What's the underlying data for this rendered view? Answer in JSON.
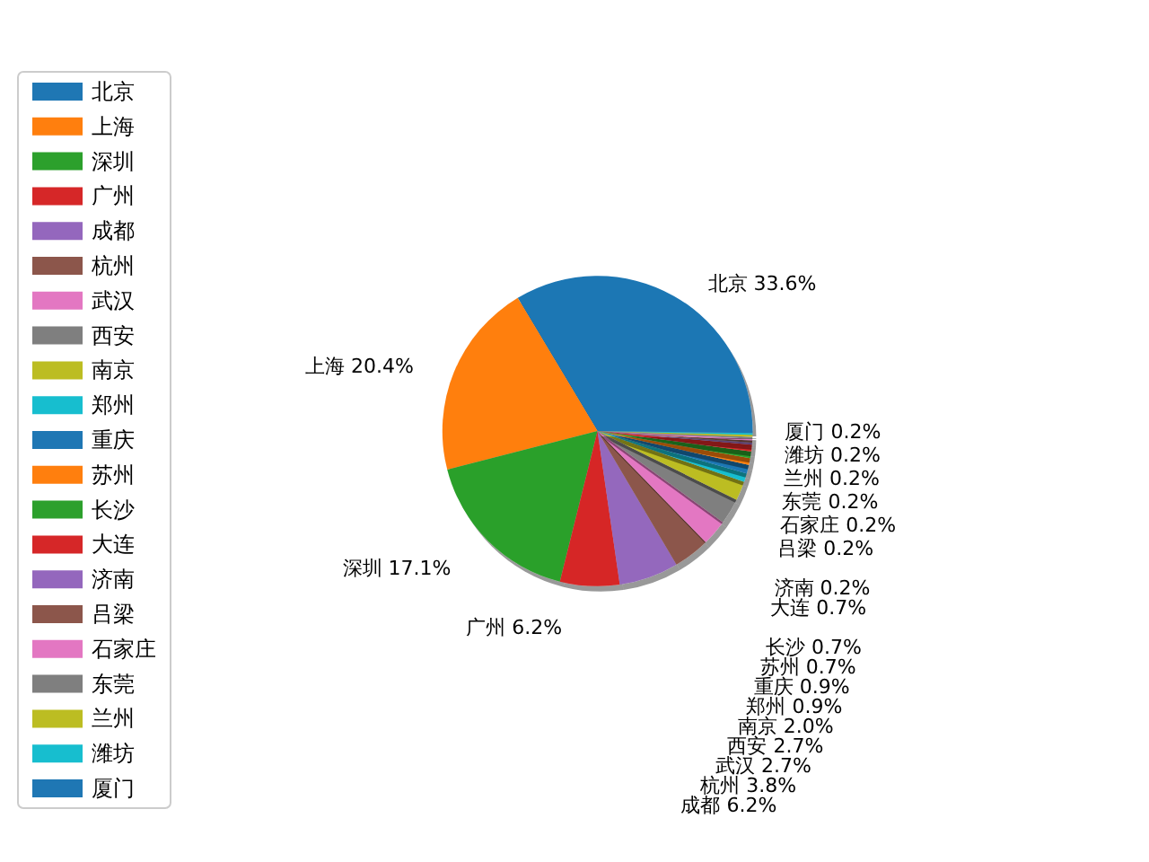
{
  "chart_data": {
    "type": "pie",
    "categories": [
      "北京",
      "上海",
      "深圳",
      "广州",
      "成都",
      "杭州",
      "武汉",
      "西安",
      "南京",
      "郑州",
      "重庆",
      "苏州",
      "长沙",
      "大连",
      "济南",
      "吕梁",
      "石家庄",
      "东莞",
      "兰州",
      "潍坊",
      "厦门"
    ],
    "values": [
      33.6,
      20.4,
      17.1,
      6.2,
      6.2,
      3.8,
      2.7,
      2.7,
      2.0,
      0.9,
      0.9,
      0.7,
      0.7,
      0.7,
      0.2,
      0.2,
      0.2,
      0.2,
      0.2,
      0.2,
      0.2
    ],
    "value_labels": [
      "33.6%",
      "20.4%",
      "17.1%",
      "6.2%",
      "6.2%",
      "3.8%",
      "2.7%",
      "2.7%",
      "2.0%",
      "0.9%",
      "0.9%",
      "0.7%",
      "0.7%",
      "0.7%",
      "0.2%",
      "0.2%",
      "0.2%",
      "0.2%",
      "0.2%",
      "0.2%",
      "0.2%"
    ],
    "colors": [
      "#1f77b4",
      "#ff7f0e",
      "#2ca02c",
      "#d62728",
      "#9467bd",
      "#8c564b",
      "#e377c2",
      "#7f7f7f",
      "#bcbd22",
      "#17becf",
      "#1f77b4",
      "#ff7f0e",
      "#2ca02c",
      "#d62728",
      "#9467bd",
      "#8c564b",
      "#e377c2",
      "#7f7f7f",
      "#bcbd22",
      "#17becf",
      "#1f77b4"
    ],
    "legend": "left"
  }
}
